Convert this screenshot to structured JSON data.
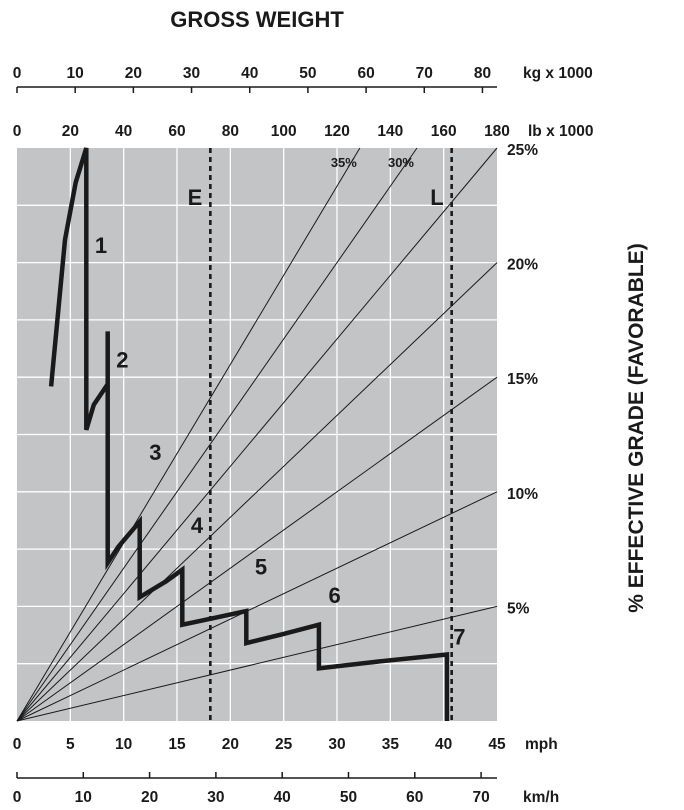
{
  "chart_data": {
    "type": "line",
    "title": "GROSS WEIGHT",
    "right_axis_title": "% EFFECTIVE GRADE  (FAVORABLE)",
    "colors": {
      "plot_bg": "#c3c4c6",
      "grid": "#ffffff",
      "line": "#1a1a1a",
      "text": "#1a1a1a"
    },
    "axes": {
      "x_bottom": {
        "unit": "mph",
        "range": [
          0,
          45
        ],
        "ticks": [
          "0",
          "5",
          "10",
          "15",
          "20",
          "25",
          "30",
          "35",
          "40",
          "45"
        ]
      },
      "x_bottom_secondary": {
        "unit": "km/h",
        "range": [
          0,
          72.4
        ],
        "ticks": [
          "0",
          "10",
          "20",
          "30",
          "40",
          "50",
          "60",
          "70"
        ]
      },
      "y_top_kg": {
        "unit": "kg x 1000",
        "range": [
          0,
          82.5
        ],
        "ticks": [
          "0",
          "10",
          "20",
          "30",
          "40",
          "50",
          "60",
          "70",
          "80"
        ]
      },
      "y_top_lb": {
        "unit": "lb x 1000",
        "range": [
          0,
          180
        ],
        "ticks": [
          "0",
          "20",
          "40",
          "60",
          "80",
          "100",
          "120",
          "140",
          "160",
          "180"
        ]
      },
      "y_grade": {
        "unit": "%",
        "ticks": [
          "5%",
          "10%",
          "15%",
          "20%",
          "25%"
        ]
      },
      "grid": true
    },
    "grade_lines": [
      {
        "grade": "5%",
        "label": "5%"
      },
      {
        "grade": "10%",
        "label": "10%"
      },
      {
        "grade": "15%",
        "label": "15%"
      },
      {
        "grade": "20%",
        "label": "20%"
      },
      {
        "grade": "25%",
        "label": "25%"
      },
      {
        "grade": "30%",
        "label": "30%"
      },
      {
        "grade": "35%",
        "label": "35%"
      }
    ],
    "weight_markers": [
      {
        "label": "E",
        "weight_lb": 72.5
      },
      {
        "label": "L",
        "weight_lb": 163
      }
    ],
    "retarder_curve": {
      "points": [
        [
          3.2,
          14.6
        ],
        [
          4.5,
          21
        ],
        [
          5.5,
          23.5
        ],
        [
          6.5,
          25
        ],
        [
          6.5,
          12.7
        ],
        [
          7.2,
          13.8
        ],
        [
          8.5,
          14.7
        ],
        [
          8.5,
          17
        ],
        [
          8.5,
          6.9
        ],
        [
          9.5,
          7.6
        ],
        [
          11.5,
          8.7
        ],
        [
          11.5,
          5.4
        ],
        [
          14,
          6.1
        ],
        [
          15.5,
          6.6
        ],
        [
          15.5,
          4.2
        ],
        [
          18.5,
          4.5
        ],
        [
          21.5,
          4.8
        ],
        [
          21.5,
          3.4
        ],
        [
          25,
          3.8
        ],
        [
          28.3,
          4.2
        ],
        [
          28.3,
          2.3
        ],
        [
          34,
          2.6
        ],
        [
          40.3,
          2.9
        ],
        [
          40.3,
          0
        ]
      ],
      "gear_labels": [
        {
          "label": "1",
          "mph": 7.3,
          "at_weight_lb": 147
        },
        {
          "label": "2",
          "mph": 9.3,
          "at_weight_lb": 111
        },
        {
          "label": "3",
          "mph": 12.4,
          "at_weight_lb": 82
        },
        {
          "label": "4",
          "mph": 16.3,
          "at_weight_lb": 59
        },
        {
          "label": "5",
          "mph": 22.3,
          "at_weight_lb": 46
        },
        {
          "label": "6",
          "mph": 29.2,
          "at_weight_lb": 37
        },
        {
          "label": "7",
          "mph": 40.9,
          "at_weight_lb": 24
        }
      ]
    }
  }
}
